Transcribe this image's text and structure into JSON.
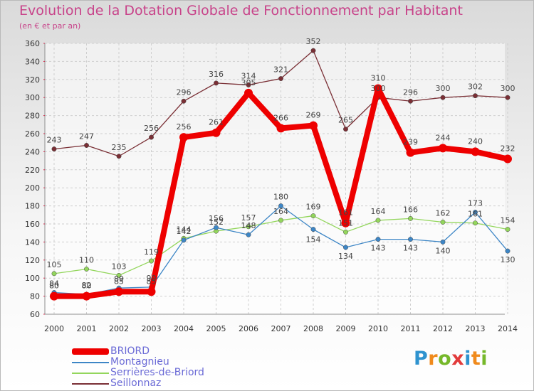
{
  "chart_data": {
    "type": "line",
    "title": "Evolution de la Dotation Globale de Fonctionnement par Habitant",
    "subtitle": "(en € et par an)",
    "xlabel": "",
    "ylabel": "",
    "ylim": [
      60,
      360
    ],
    "yticks": [
      60,
      80,
      100,
      120,
      140,
      160,
      180,
      200,
      220,
      240,
      260,
      280,
      300,
      320,
      340,
      360
    ],
    "categories": [
      "2000",
      "2001",
      "2002",
      "2003",
      "2004",
      "2005",
      "2006",
      "2007",
      "2008",
      "2009",
      "2010",
      "2011",
      "2012",
      "2013",
      "2014"
    ],
    "grid": true,
    "legend_position": "bottom-left",
    "series": [
      {
        "name": "Seillonnaz",
        "color": "#7a2f35",
        "values": [
          243,
          247,
          235,
          256,
          296,
          316,
          314,
          321,
          352,
          265,
          300,
          296,
          300,
          302,
          300
        ]
      },
      {
        "name": "Serrières-de-Briord",
        "color": "#93d65c",
        "values": [
          105,
          110,
          103,
          119,
          144,
          152,
          157,
          164,
          169,
          151,
          164,
          166,
          162,
          161,
          154
        ]
      },
      {
        "name": "Montagnieu",
        "color": "#3d86c6",
        "values": [
          84,
          82,
          89,
          90,
          142,
          156,
          148,
          180,
          154,
          134,
          143,
          143,
          140,
          173,
          130
        ]
      },
      {
        "name": "BRIORD",
        "color": "#ee0000",
        "values": [
          80,
          80,
          85,
          85,
          256,
          261,
          305,
          266,
          269,
          161,
          310,
          239,
          244,
          240,
          232
        ]
      }
    ]
  },
  "legend": {
    "items": [
      {
        "label": "BRIORD",
        "color": "#ee0000"
      },
      {
        "label": "Montagnieu",
        "color": "#3d86c6"
      },
      {
        "label": "Serrières-de-Briord",
        "color": "#93d65c"
      },
      {
        "label": "Seillonnaz",
        "color": "#7a2f35"
      }
    ]
  },
  "brand": {
    "logo_letters": [
      "P",
      "r",
      "o",
      "x",
      "i",
      "t",
      "i"
    ],
    "logo_colors": [
      "#2f93cf",
      "#f08a1c",
      "#76b82a",
      "#e23b3b",
      "#2f93cf",
      "#f08a1c",
      "#76b82a"
    ]
  }
}
